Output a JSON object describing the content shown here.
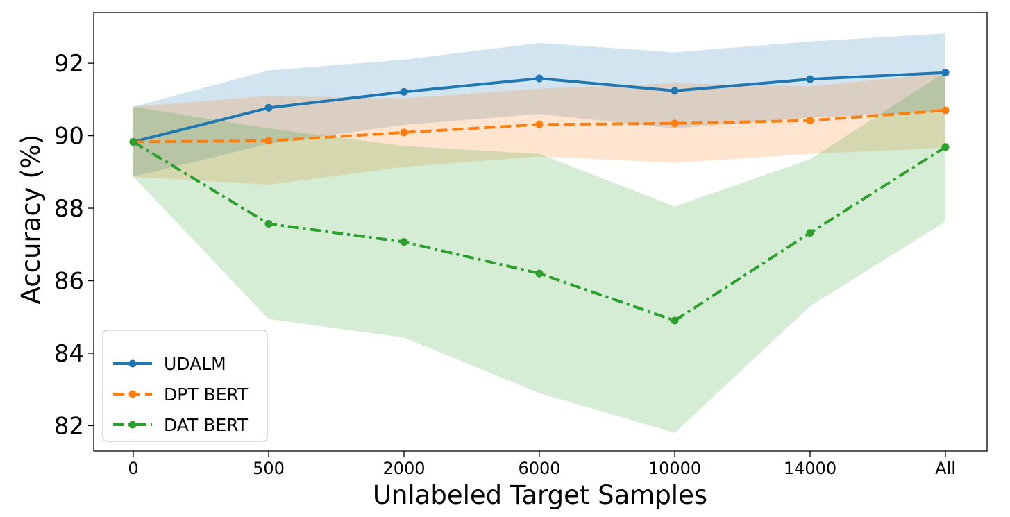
{
  "chart_data": {
    "type": "line",
    "title": "",
    "xlabel": "Unlabeled Target Samples",
    "ylabel": "Accuracy (%)",
    "categories": [
      "0",
      "500",
      "2000",
      "6000",
      "10000",
      "14000",
      "All"
    ],
    "yticks": [
      "82",
      "84",
      "86",
      "88",
      "90",
      "92"
    ],
    "ylim": [
      81.3,
      93.4
    ],
    "grid": false,
    "legend_position": "lower-left",
    "series": [
      {
        "name": "UDALM",
        "color": "#1f77b4",
        "linestyle": "solid",
        "values": [
          89.83,
          90.77,
          91.21,
          91.58,
          91.24,
          91.56,
          91.74
        ],
        "band_upper": [
          90.8,
          91.8,
          92.1,
          92.56,
          92.3,
          92.6,
          92.82
        ],
        "band_lower": [
          88.87,
          89.78,
          90.3,
          90.6,
          90.2,
          90.5,
          90.66
        ]
      },
      {
        "name": "DPT BERT",
        "color": "#ff7f0e",
        "linestyle": "dashed",
        "values": [
          89.83,
          89.86,
          90.09,
          90.31,
          90.34,
          90.42,
          90.7
        ],
        "band_upper": [
          90.8,
          91.1,
          91.03,
          91.3,
          91.45,
          91.36,
          91.73
        ],
        "band_lower": [
          88.87,
          88.65,
          89.14,
          89.43,
          89.25,
          89.5,
          89.67
        ]
      },
      {
        "name": "DAT BERT",
        "color": "#2ca02c",
        "linestyle": "dashdot",
        "values": [
          89.83,
          87.57,
          87.07,
          86.2,
          84.9,
          87.32,
          89.69
        ],
        "band_upper": [
          90.8,
          90.2,
          89.72,
          89.5,
          88.05,
          89.35,
          91.76
        ],
        "band_lower": [
          88.87,
          84.94,
          84.43,
          82.9,
          81.8,
          85.3,
          87.63
        ]
      }
    ]
  }
}
